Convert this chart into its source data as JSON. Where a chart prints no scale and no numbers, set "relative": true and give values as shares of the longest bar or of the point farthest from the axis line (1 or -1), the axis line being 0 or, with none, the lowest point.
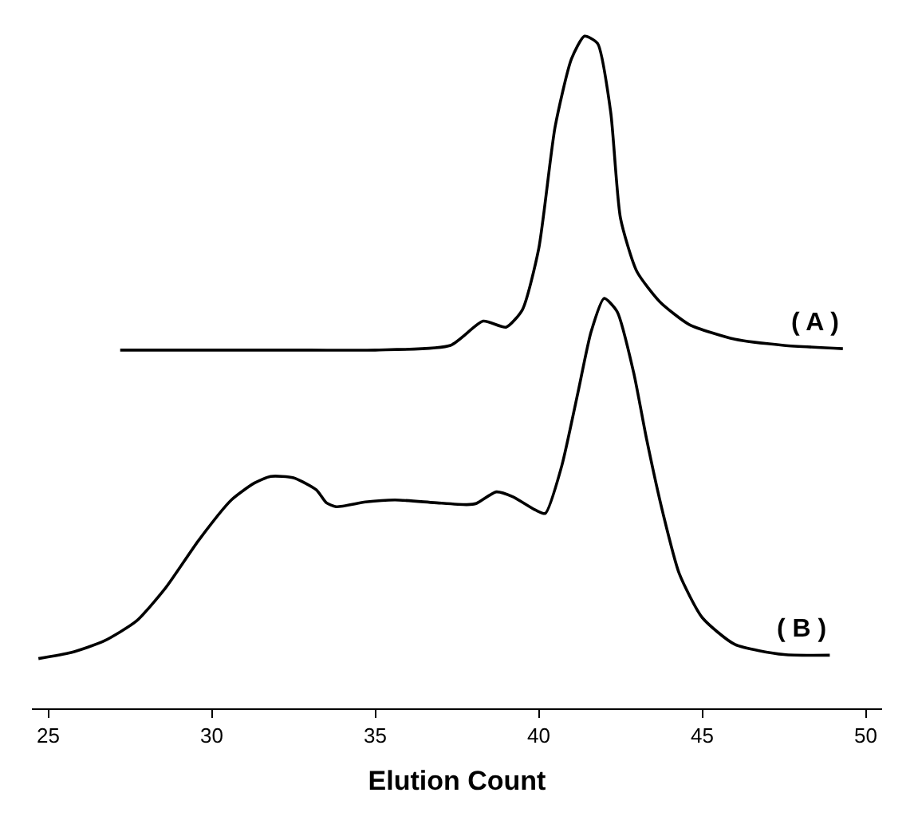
{
  "chart_data": {
    "type": "line",
    "relative": true,
    "xlabel": "Elution Count",
    "xlim": [
      24.5,
      50.5
    ],
    "xticks": [
      25,
      30,
      35,
      40,
      45,
      50
    ],
    "legend": false,
    "marker": "none",
    "line_style": "solid",
    "series": [
      {
        "name": "( A )",
        "color": "#000000",
        "x": [
          27.2,
          30,
          33,
          35,
          37.3,
          38.3,
          39.0,
          39.5,
          40.0,
          40.5,
          41.0,
          41.4,
          41.8,
          42.2,
          42.5,
          43.0,
          43.7,
          44.6,
          46.0,
          47.5,
          49.3
        ],
        "values": [
          0.533,
          0.533,
          0.533,
          0.533,
          0.54,
          0.576,
          0.567,
          0.593,
          0.684,
          0.865,
          0.966,
          1.0,
          0.989,
          0.887,
          0.729,
          0.65,
          0.605,
          0.571,
          0.549,
          0.54,
          0.535
        ]
      },
      {
        "name": "( B )",
        "color": "#000000",
        "x": [
          24.7,
          25.7,
          26.7,
          27.7,
          28.6,
          29.6,
          30.6,
          31.3,
          31.8,
          32.5,
          33.2,
          33.5,
          33.8,
          34.7,
          35.6,
          36.8,
          37.8,
          38.1,
          38.7,
          39.2,
          39.9,
          40.2,
          40.7,
          41.2,
          41.6,
          42.0,
          42.4,
          42.9,
          43.3,
          43.8,
          44.3,
          45.0,
          46.0,
          47.5,
          48.9
        ],
        "values": [
          0.074,
          0.083,
          0.1,
          0.13,
          0.18,
          0.25,
          0.31,
          0.335,
          0.345,
          0.343,
          0.325,
          0.306,
          0.3,
          0.307,
          0.31,
          0.306,
          0.303,
          0.305,
          0.322,
          0.315,
          0.295,
          0.29,
          0.36,
          0.47,
          0.56,
          0.61,
          0.59,
          0.5,
          0.4,
          0.29,
          0.2,
          0.135,
          0.095,
          0.08,
          0.079
        ]
      }
    ]
  }
}
